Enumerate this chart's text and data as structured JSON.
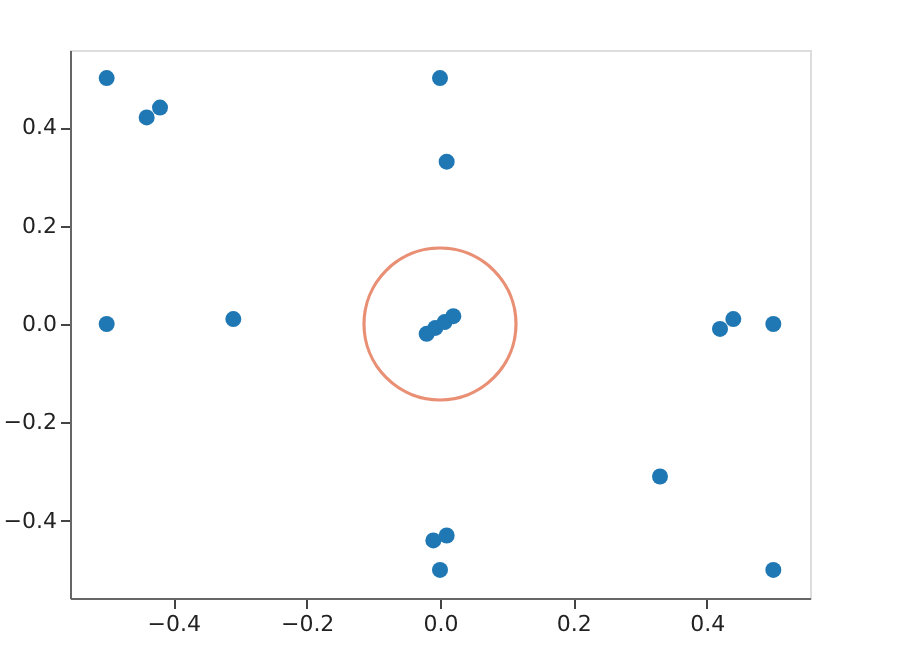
{
  "chart_data": {
    "type": "scatter",
    "marker": "circle",
    "grid": false,
    "xlim": [
      -0.555,
      0.555
    ],
    "ylim": [
      -0.557,
      0.557
    ],
    "xticks": [
      {
        "value": -0.4,
        "label": "−0.4"
      },
      {
        "value": -0.2,
        "label": "−0.2"
      },
      {
        "value": 0,
        "label": "0.0"
      },
      {
        "value": 0.2,
        "label": "0.2"
      },
      {
        "value": 0.4,
        "label": "0.4"
      }
    ],
    "yticks": [
      {
        "value": -0.4,
        "label": "−0.4"
      },
      {
        "value": -0.2,
        "label": "−0.2"
      },
      {
        "value": 0,
        "label": "0.0"
      },
      {
        "value": 0.2,
        "label": "0.2"
      },
      {
        "value": 0.4,
        "label": "0.4"
      }
    ],
    "series": [
      {
        "color": "#1f77b4",
        "x": [
          -0.5,
          -0.44,
          -0.42,
          0.0,
          0.01,
          -0.5,
          -0.31,
          0.42,
          0.44,
          0.5,
          0.33,
          0.5,
          -0.01,
          0.01,
          0.0,
          -0.02,
          -0.007,
          0.007,
          0.02
        ],
        "values": [
          0.5,
          0.42,
          0.44,
          0.5,
          0.33,
          0.0,
          0.01,
          -0.01,
          0.01,
          0.0,
          -0.31,
          -0.5,
          -0.44,
          -0.43,
          -0.5,
          -0.02,
          -0.008,
          0.004,
          0.016
        ]
      },
      {
        "marker": "circle",
        "line_style": "solid",
        "color": "#e0603a",
        "x": [
          0.0
        ],
        "values": [
          0.0
        ]
      }
    ]
  }
}
